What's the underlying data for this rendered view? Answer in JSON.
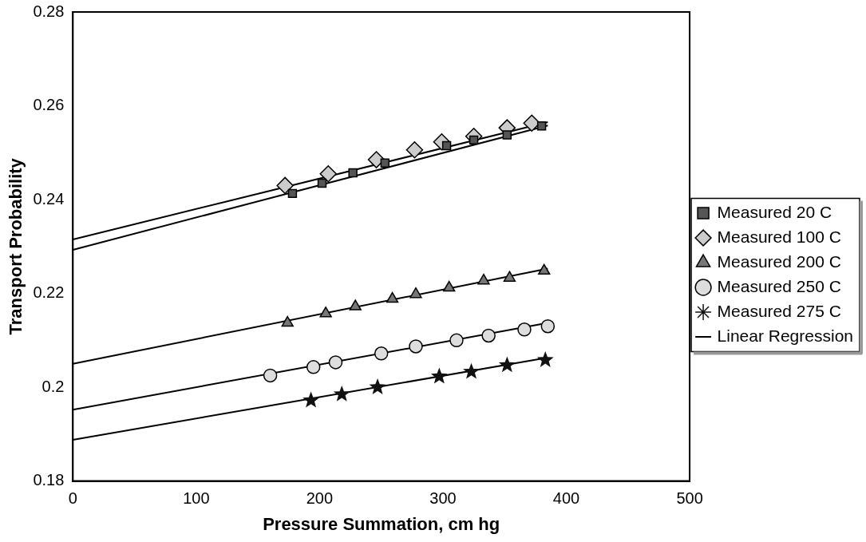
{
  "chart_data": {
    "type": "scatter",
    "xlabel": "Pressure Summation, cm hg",
    "ylabel": "Transport Probability",
    "xlim": [
      0,
      500
    ],
    "xticks": [
      0,
      100,
      200,
      300,
      400,
      500
    ],
    "ylim": [
      0.18,
      0.28
    ],
    "yticks": [
      0.18,
      0.2,
      0.22,
      0.24,
      0.26,
      0.28
    ],
    "grid": false,
    "legend": "right",
    "series": [
      {
        "name": "Measured 20 C",
        "type": "scatter",
        "marker": "square",
        "color": "#555555",
        "x": [
          178,
          202,
          227,
          253,
          303,
          325,
          352,
          380
        ],
        "values": [
          0.2413,
          0.2435,
          0.2457,
          0.2478,
          0.2515,
          0.2527,
          0.2538,
          0.2557
        ]
      },
      {
        "name": "Measured 100 C",
        "type": "scatter",
        "marker": "diamond",
        "color": "#cccccc",
        "x": [
          172,
          207,
          246,
          277,
          299,
          325,
          352,
          372
        ],
        "values": [
          0.243,
          0.2455,
          0.2485,
          0.2506,
          0.2523,
          0.2535,
          0.2553,
          0.2563
        ]
      },
      {
        "name": "Measured 200 C",
        "type": "scatter",
        "marker": "triangle",
        "color": "#777777",
        "x": [
          174,
          205,
          229,
          259,
          278,
          305,
          333,
          354,
          382
        ],
        "values": [
          0.2137,
          0.2157,
          0.2172,
          0.2188,
          0.2198,
          0.2212,
          0.2227,
          0.2233,
          0.2248
        ]
      },
      {
        "name": "Measured 250 C",
        "type": "scatter",
        "marker": "circle",
        "color": "#dddddd",
        "x": [
          160,
          195,
          213,
          250,
          278,
          311,
          337,
          366,
          385
        ],
        "values": [
          0.2025,
          0.2043,
          0.2053,
          0.2072,
          0.2087,
          0.21,
          0.211,
          0.2123,
          0.213
        ]
      },
      {
        "name": "Measured 275 C",
        "type": "scatter",
        "marker": "star",
        "color": "#111111",
        "x": [
          193,
          218,
          247,
          297,
          323,
          352,
          383
        ],
        "values": [
          0.1972,
          0.1985,
          0.2,
          0.2023,
          0.2033,
          0.2047,
          0.2058
        ]
      },
      {
        "name": "Linear Regression",
        "type": "line",
        "marker": "none",
        "color": "#000000",
        "x": [
          0,
          385
        ],
        "values": [
          0.2293,
          0.2558
        ]
      },
      {
        "type": "line",
        "marker": "none",
        "color": "#000000",
        "x": [
          0,
          385
        ],
        "values": [
          0.2315,
          0.2565
        ]
      },
      {
        "type": "line",
        "marker": "none",
        "color": "#000000",
        "x": [
          0,
          385
        ],
        "values": [
          0.205,
          0.2253
        ]
      },
      {
        "type": "line",
        "marker": "none",
        "color": "#000000",
        "x": [
          0,
          385
        ],
        "values": [
          0.1952,
          0.2137
        ]
      },
      {
        "type": "line",
        "marker": "none",
        "color": "#000000",
        "x": [
          0,
          385
        ],
        "values": [
          0.1888,
          0.2063
        ]
      }
    ]
  }
}
